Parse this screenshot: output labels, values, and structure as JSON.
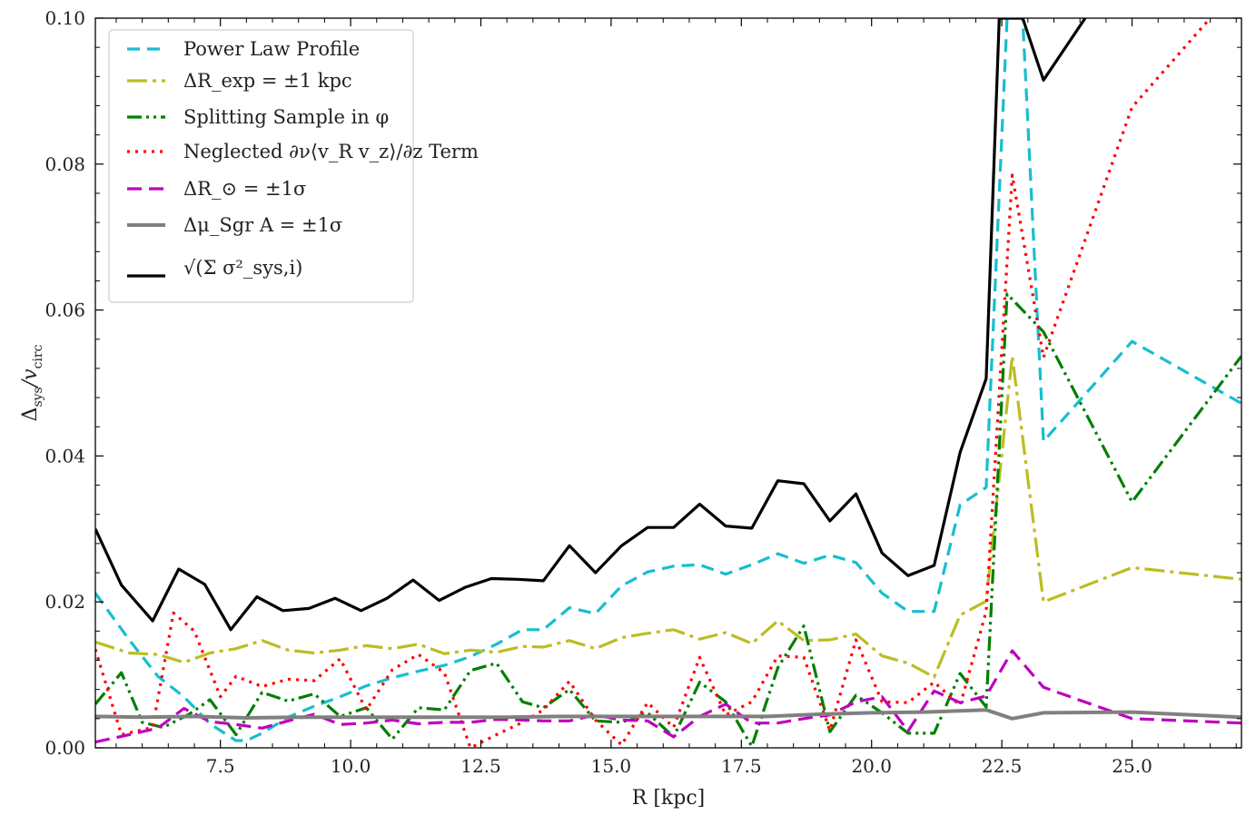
{
  "chart_data": {
    "type": "line",
    "xlabel": "R [kpc]",
    "ylabel": "Δ_sys/v_circ",
    "ylabel_main": "Δ",
    "ylabel_sub1": "sys",
    "ylabel_mid": "/v",
    "ylabel_sub2": "circ",
    "xlim": [
      5.1,
      27.1
    ],
    "ylim": [
      0.0,
      0.1
    ],
    "x_ticks": [
      7.5,
      10.0,
      12.5,
      15.0,
      17.5,
      20.0,
      22.5,
      25.0
    ],
    "x_tick_labels": [
      "7.5",
      "10.0",
      "12.5",
      "15.0",
      "17.5",
      "20.0",
      "22.5",
      "25.0"
    ],
    "y_ticks": [
      0.0,
      0.02,
      0.04,
      0.06,
      0.08,
      0.1
    ],
    "y_tick_labels": [
      "0.00",
      "0.02",
      "0.04",
      "0.06",
      "0.08",
      "0.10"
    ],
    "grid": false,
    "legend_position": "top-left",
    "series": [
      {
        "name": "Power Law Profile",
        "color": "#17becf",
        "dash": "14,8",
        "points": [
          [
            5.1,
            0.0212
          ],
          [
            5.75,
            0.0148
          ],
          [
            6.3,
            0.0098
          ],
          [
            6.8,
            0.007
          ],
          [
            7.3,
            0.0033
          ],
          [
            7.8,
            0.001
          ],
          [
            8.0,
            0.001
          ],
          [
            8.3,
            0.002
          ],
          [
            8.8,
            0.0042
          ],
          [
            9.3,
            0.0057
          ],
          [
            9.8,
            0.007
          ],
          [
            10.3,
            0.0085
          ],
          [
            10.8,
            0.0096
          ],
          [
            11.3,
            0.0105
          ],
          [
            11.8,
            0.0113
          ],
          [
            12.3,
            0.0125
          ],
          [
            12.8,
            0.0142
          ],
          [
            13.3,
            0.0162
          ],
          [
            13.7,
            0.0162
          ],
          [
            14.2,
            0.0192
          ],
          [
            14.7,
            0.0184
          ],
          [
            15.2,
            0.0222
          ],
          [
            15.7,
            0.0241
          ],
          [
            16.2,
            0.0249
          ],
          [
            16.7,
            0.0251
          ],
          [
            17.2,
            0.0238
          ],
          [
            17.7,
            0.0251
          ],
          [
            18.2,
            0.0266
          ],
          [
            18.7,
            0.0253
          ],
          [
            19.2,
            0.0264
          ],
          [
            19.7,
            0.0254
          ],
          [
            20.2,
            0.0212
          ],
          [
            20.7,
            0.0187
          ],
          [
            21.2,
            0.0187
          ],
          [
            21.7,
            0.0333
          ],
          [
            22.2,
            0.0357
          ],
          [
            22.6,
            0.1
          ],
          [
            22.9,
            0.1
          ],
          [
            23.3,
            0.042
          ],
          [
            25.0,
            0.0557
          ],
          [
            27.1,
            0.0472
          ]
        ]
      },
      {
        "name": "ΔR_exp = ±1 kpc",
        "color": "#bcbd22",
        "dash": "22,6,4,6",
        "points": [
          [
            5.1,
            0.0145
          ],
          [
            5.75,
            0.013
          ],
          [
            6.3,
            0.0128
          ],
          [
            6.8,
            0.0117
          ],
          [
            7.3,
            0.013
          ],
          [
            7.8,
            0.0136
          ],
          [
            8.3,
            0.0147
          ],
          [
            8.8,
            0.0134
          ],
          [
            9.3,
            0.013
          ],
          [
            9.8,
            0.0134
          ],
          [
            10.3,
            0.014
          ],
          [
            10.8,
            0.0136
          ],
          [
            11.3,
            0.0142
          ],
          [
            11.8,
            0.0129
          ],
          [
            12.3,
            0.0134
          ],
          [
            12.8,
            0.0131
          ],
          [
            13.3,
            0.0139
          ],
          [
            13.7,
            0.0138
          ],
          [
            14.2,
            0.0147
          ],
          [
            14.7,
            0.0136
          ],
          [
            15.2,
            0.0151
          ],
          [
            15.7,
            0.0157
          ],
          [
            16.2,
            0.0162
          ],
          [
            16.7,
            0.0149
          ],
          [
            17.2,
            0.0158
          ],
          [
            17.7,
            0.0143
          ],
          [
            18.2,
            0.0174
          ],
          [
            18.7,
            0.0147
          ],
          [
            19.2,
            0.0148
          ],
          [
            19.7,
            0.0156
          ],
          [
            20.2,
            0.0126
          ],
          [
            20.7,
            0.0116
          ],
          [
            21.2,
            0.0097
          ],
          [
            21.7,
            0.0182
          ],
          [
            22.2,
            0.0201
          ],
          [
            22.7,
            0.0537
          ],
          [
            23.3,
            0.02
          ],
          [
            25.0,
            0.0247
          ],
          [
            27.1,
            0.0231
          ]
        ]
      },
      {
        "name": "Splitting Sample in φ",
        "color": "#007f00",
        "dash": "16,5,3,5,3,5",
        "points": [
          [
            5.1,
            0.006
          ],
          [
            5.6,
            0.0103
          ],
          [
            6.0,
            0.0035
          ],
          [
            6.4,
            0.0028
          ],
          [
            6.9,
            0.0046
          ],
          [
            7.3,
            0.0066
          ],
          [
            7.8,
            0.0018
          ],
          [
            8.3,
            0.0076
          ],
          [
            8.8,
            0.0064
          ],
          [
            9.3,
            0.0074
          ],
          [
            9.8,
            0.0043
          ],
          [
            10.3,
            0.0055
          ],
          [
            10.8,
            0.0012
          ],
          [
            11.3,
            0.0055
          ],
          [
            11.8,
            0.0052
          ],
          [
            12.3,
            0.0106
          ],
          [
            12.8,
            0.0116
          ],
          [
            13.3,
            0.0063
          ],
          [
            13.7,
            0.0055
          ],
          [
            14.2,
            0.008
          ],
          [
            14.7,
            0.0037
          ],
          [
            15.2,
            0.0035
          ],
          [
            15.7,
            0.0048
          ],
          [
            16.2,
            0.0015
          ],
          [
            16.7,
            0.009
          ],
          [
            17.2,
            0.0063
          ],
          [
            17.7,
            0.0002
          ],
          [
            18.2,
            0.011
          ],
          [
            18.7,
            0.0167
          ],
          [
            19.2,
            0.0022
          ],
          [
            19.7,
            0.0072
          ],
          [
            20.2,
            0.0048
          ],
          [
            20.7,
            0.002
          ],
          [
            21.2,
            0.002
          ],
          [
            21.7,
            0.0102
          ],
          [
            22.2,
            0.0056
          ],
          [
            22.6,
            0.0622
          ],
          [
            23.3,
            0.057
          ],
          [
            25.0,
            0.0337
          ],
          [
            27.1,
            0.0537
          ]
        ]
      },
      {
        "name": "Neglected ∂ν⟨v_R v_z⟩/∂z Term",
        "color": "#ff0000",
        "dash": "3,6",
        "points": [
          [
            5.1,
            0.0135
          ],
          [
            5.6,
            0.0018
          ],
          [
            6.2,
            0.0028
          ],
          [
            6.6,
            0.0185
          ],
          [
            7.0,
            0.016
          ],
          [
            7.5,
            0.007
          ],
          [
            7.8,
            0.0098
          ],
          [
            8.3,
            0.0084
          ],
          [
            8.8,
            0.0094
          ],
          [
            9.3,
            0.0092
          ],
          [
            9.8,
            0.0122
          ],
          [
            10.3,
            0.0052
          ],
          [
            10.8,
            0.0107
          ],
          [
            11.3,
            0.0128
          ],
          [
            11.8,
            0.0103
          ],
          [
            12.3,
            0.0
          ],
          [
            12.8,
            0.0018
          ],
          [
            13.3,
            0.0035
          ],
          [
            13.7,
            0.0052
          ],
          [
            14.2,
            0.0091
          ],
          [
            14.7,
            0.0038
          ],
          [
            15.2,
            0.0004
          ],
          [
            15.7,
            0.0062
          ],
          [
            16.2,
            0.0028
          ],
          [
            16.7,
            0.0124
          ],
          [
            17.2,
            0.0045
          ],
          [
            17.7,
            0.0063
          ],
          [
            18.2,
            0.0126
          ],
          [
            18.7,
            0.0124
          ],
          [
            19.2,
            0.0024
          ],
          [
            19.7,
            0.0148
          ],
          [
            20.2,
            0.0063
          ],
          [
            20.7,
            0.0062
          ],
          [
            21.2,
            0.009
          ],
          [
            21.7,
            0.0058
          ],
          [
            22.2,
            0.0187
          ],
          [
            22.7,
            0.0785
          ],
          [
            23.3,
            0.0535
          ],
          [
            25.0,
            0.0878
          ],
          [
            26.5,
            0.1
          ]
        ]
      },
      {
        "name": "ΔR_⊙ = ±1σ",
        "color": "#bf00bf",
        "dash": "16,8",
        "points": [
          [
            5.1,
            0.0008
          ],
          [
            5.75,
            0.0018
          ],
          [
            6.3,
            0.0027
          ],
          [
            6.8,
            0.0054
          ],
          [
            7.3,
            0.0036
          ],
          [
            7.8,
            0.0032
          ],
          [
            8.3,
            0.0027
          ],
          [
            8.8,
            0.0037
          ],
          [
            9.3,
            0.0046
          ],
          [
            9.8,
            0.0032
          ],
          [
            10.3,
            0.0034
          ],
          [
            10.8,
            0.0038
          ],
          [
            11.3,
            0.0033
          ],
          [
            11.8,
            0.0035
          ],
          [
            12.3,
            0.0035
          ],
          [
            12.8,
            0.0039
          ],
          [
            13.3,
            0.0038
          ],
          [
            13.7,
            0.0037
          ],
          [
            14.2,
            0.0037
          ],
          [
            14.7,
            0.0045
          ],
          [
            15.2,
            0.0038
          ],
          [
            15.7,
            0.0037
          ],
          [
            16.2,
            0.0015
          ],
          [
            16.7,
            0.0043
          ],
          [
            17.2,
            0.006
          ],
          [
            17.7,
            0.0034
          ],
          [
            18.2,
            0.0034
          ],
          [
            18.7,
            0.004
          ],
          [
            19.2,
            0.0045
          ],
          [
            19.7,
            0.0063
          ],
          [
            20.2,
            0.007
          ],
          [
            20.7,
            0.0023
          ],
          [
            21.2,
            0.0078
          ],
          [
            21.7,
            0.0062
          ],
          [
            22.2,
            0.0071
          ],
          [
            22.7,
            0.0133
          ],
          [
            23.3,
            0.0083
          ],
          [
            25.0,
            0.004
          ],
          [
            27.1,
            0.0034
          ]
        ]
      },
      {
        "name": "Δμ_Sgr A = ±1σ",
        "color": "#808080",
        "dash": "",
        "points": [
          [
            5.1,
            0.0043
          ],
          [
            6.0,
            0.0042
          ],
          [
            7.0,
            0.0043
          ],
          [
            8.0,
            0.0041
          ],
          [
            9.0,
            0.0042
          ],
          [
            10.0,
            0.0042
          ],
          [
            11.0,
            0.0042
          ],
          [
            12.0,
            0.0042
          ],
          [
            13.0,
            0.0042
          ],
          [
            14.0,
            0.0043
          ],
          [
            15.0,
            0.0043
          ],
          [
            16.0,
            0.0043
          ],
          [
            17.0,
            0.0043
          ],
          [
            18.0,
            0.0043
          ],
          [
            19.0,
            0.0046
          ],
          [
            20.0,
            0.0048
          ],
          [
            21.0,
            0.0049
          ],
          [
            22.2,
            0.0052
          ],
          [
            22.7,
            0.004
          ],
          [
            23.3,
            0.0048
          ],
          [
            25.0,
            0.0049
          ],
          [
            27.1,
            0.0042
          ]
        ]
      },
      {
        "name": "√(Σ σ²_sys,i)",
        "color": "#000000",
        "dash": "",
        "points": [
          [
            5.1,
            0.03
          ],
          [
            5.6,
            0.0223
          ],
          [
            6.2,
            0.0174
          ],
          [
            6.7,
            0.0245
          ],
          [
            7.2,
            0.0224
          ],
          [
            7.7,
            0.0162
          ],
          [
            8.2,
            0.0207
          ],
          [
            8.7,
            0.0188
          ],
          [
            9.2,
            0.0191
          ],
          [
            9.7,
            0.0205
          ],
          [
            10.2,
            0.0188
          ],
          [
            10.7,
            0.0205
          ],
          [
            11.2,
            0.023
          ],
          [
            11.7,
            0.0202
          ],
          [
            12.2,
            0.022
          ],
          [
            12.7,
            0.0232
          ],
          [
            13.2,
            0.0231
          ],
          [
            13.7,
            0.0229
          ],
          [
            14.2,
            0.0277
          ],
          [
            14.7,
            0.024
          ],
          [
            15.2,
            0.0277
          ],
          [
            15.7,
            0.0302
          ],
          [
            16.2,
            0.0302
          ],
          [
            16.7,
            0.0334
          ],
          [
            17.2,
            0.0304
          ],
          [
            17.7,
            0.0301
          ],
          [
            18.2,
            0.0366
          ],
          [
            18.7,
            0.0362
          ],
          [
            19.2,
            0.0311
          ],
          [
            19.7,
            0.0348
          ],
          [
            20.2,
            0.0267
          ],
          [
            20.7,
            0.0236
          ],
          [
            21.2,
            0.025
          ],
          [
            21.7,
            0.0405
          ],
          [
            22.2,
            0.0506
          ],
          [
            22.45,
            0.1
          ],
          [
            22.9,
            0.1
          ],
          [
            23.3,
            0.0915
          ],
          [
            24.1,
            0.1
          ]
        ]
      }
    ],
    "legend": {
      "items": [
        {
          "text": "Power Law Profile"
        },
        {
          "text": "ΔR_exp = ±1 kpc"
        },
        {
          "text": "Splitting Sample in φ"
        },
        {
          "text": "Neglected ∂ν⟨v_R v_z⟩/∂z Term"
        },
        {
          "text": "ΔR_⊙ = ±1σ"
        },
        {
          "text": "Δμ_Sgr A = ±1σ"
        },
        {
          "text": "√(Σ σ²_sys,i)"
        }
      ]
    }
  }
}
